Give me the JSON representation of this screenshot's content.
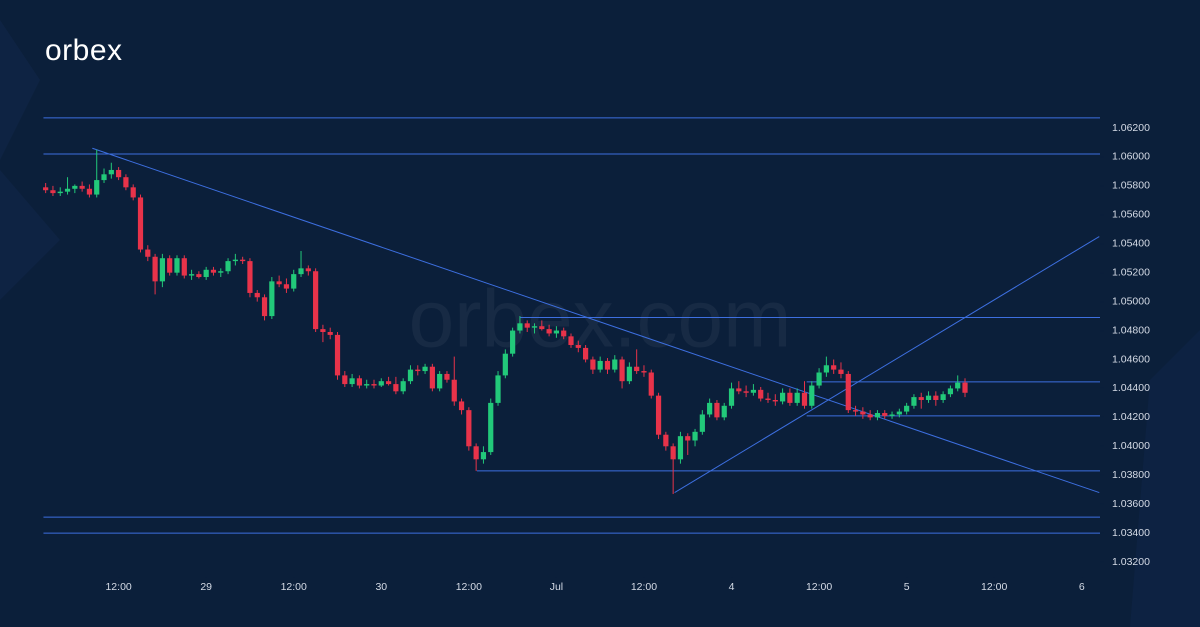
{
  "brand": {
    "logo": "orbex",
    "watermark": "orbex.com"
  },
  "chart_data": {
    "type": "candlestick",
    "up_color": "#22c97a",
    "down_color": "#e8334a",
    "line_color": "#3d6fe0",
    "xlim": [
      -22.5,
      122.5
    ],
    "ylim": [
      1.031,
      1.064
    ],
    "xticks": [
      {
        "value": -12,
        "label": "12:00"
      },
      {
        "value": 0,
        "label": "29"
      },
      {
        "value": 12,
        "label": "12:00"
      },
      {
        "value": 24,
        "label": "30"
      },
      {
        "value": 36,
        "label": "12:00"
      },
      {
        "value": 48,
        "label": "Jul"
      },
      {
        "value": 60,
        "label": "12:00"
      },
      {
        "value": 72,
        "label": "4"
      },
      {
        "value": 84,
        "label": "12:00"
      },
      {
        "value": 96,
        "label": "5"
      },
      {
        "value": 108,
        "label": "12:00"
      },
      {
        "value": 120,
        "label": "6"
      }
    ],
    "yticks": [
      {
        "value": 1.032,
        "label": "1.03200"
      },
      {
        "value": 1.034,
        "label": "1.03400"
      },
      {
        "value": 1.036,
        "label": "1.03600"
      },
      {
        "value": 1.038,
        "label": "1.03800"
      },
      {
        "value": 1.04,
        "label": "1.04000"
      },
      {
        "value": 1.042,
        "label": "1.04200"
      },
      {
        "value": 1.044,
        "label": "1.04400"
      },
      {
        "value": 1.046,
        "label": "1.04600"
      },
      {
        "value": 1.048,
        "label": "1.04800"
      },
      {
        "value": 1.05,
        "label": "1.05000"
      },
      {
        "value": 1.052,
        "label": "1.05200"
      },
      {
        "value": 1.054,
        "label": "1.05400"
      },
      {
        "value": 1.056,
        "label": "1.05600"
      },
      {
        "value": 1.058,
        "label": "1.05800"
      },
      {
        "value": 1.06,
        "label": "1.06000"
      },
      {
        "value": 1.062,
        "label": "1.06200"
      }
    ],
    "x": [
      -22,
      -21,
      -20,
      -19,
      -18,
      -17,
      -16,
      -15,
      -14,
      -13,
      -12,
      -11,
      -10,
      -9,
      -8,
      -7,
      -6,
      -5,
      -4,
      -3,
      -2,
      -1,
      0,
      1,
      2,
      3,
      4,
      5,
      6,
      7,
      8,
      9,
      10,
      11,
      12,
      13,
      14,
      15,
      16,
      17,
      18,
      19,
      20,
      21,
      22,
      23,
      24,
      25,
      26,
      27,
      28,
      29,
      30,
      31,
      32,
      33,
      34,
      35,
      36,
      37,
      38,
      39,
      40,
      41,
      42,
      43,
      44,
      45,
      46,
      47,
      48,
      49,
      50,
      51,
      52,
      53,
      54,
      55,
      56,
      57,
      58,
      59,
      60,
      61,
      62,
      63,
      64,
      65,
      66,
      67,
      68,
      69,
      70,
      71,
      72,
      73,
      74,
      75,
      76,
      77,
      78,
      79,
      80,
      81,
      82,
      83,
      84,
      85,
      86,
      87,
      88,
      89,
      90,
      91,
      92,
      93,
      94,
      95,
      96,
      97,
      98,
      99,
      100,
      101,
      102,
      103,
      104
    ],
    "open": [
      1.0579,
      1.0577,
      1.0575,
      1.0576,
      1.0578,
      1.058,
      1.0578,
      1.0574,
      1.0584,
      1.0588,
      1.0591,
      1.0586,
      1.0579,
      1.0572,
      1.0536,
      1.0531,
      1.0514,
      1.053,
      1.052,
      1.053,
      1.0518,
      1.0519,
      1.0517,
      1.0522,
      1.052,
      1.0521,
      1.0528,
      1.0529,
      1.0528,
      1.0506,
      1.0503,
      1.049,
      1.0514,
      1.0512,
      1.0509,
      1.0519,
      1.0523,
      1.0521,
      1.0481,
      1.0479,
      1.0477,
      1.0449,
      1.0443,
      1.0447,
      1.0442,
      1.0443,
      1.0442,
      1.0445,
      1.0443,
      1.0438,
      1.0445,
      1.0453,
      1.0452,
      1.0455,
      1.044,
      1.045,
      1.0446,
      1.0431,
      1.0425,
      1.04,
      1.0391,
      1.0396,
      1.043,
      1.0449,
      1.0464,
      1.048,
      1.0485,
      1.0482,
      1.0483,
      1.0481,
      1.0478,
      1.048,
      1.0476,
      1.047,
      1.0468,
      1.046,
      1.0453,
      1.0459,
      1.0453,
      1.046,
      1.0445,
      1.0455,
      1.0452,
      1.0451,
      1.0435,
      1.0408,
      1.04,
      1.0391,
      1.0407,
      1.0404,
      1.041,
      1.0422,
      1.043,
      1.042,
      1.0428,
      1.044,
      1.0438,
      1.0437,
      1.0439,
      1.0433,
      1.0432,
      1.0431,
      1.0437,
      1.043,
      1.0437,
      1.0428,
      1.0442,
      1.0451,
      1.0456,
      1.0453,
      1.045,
      1.0425,
      1.0424,
      1.0422,
      1.042,
      1.0423,
      1.0421,
      1.0422,
      1.0424,
      1.0428,
      1.0434,
      1.0432,
      1.0435,
      1.0432,
      1.0436,
      1.044,
      1.0444
    ],
    "high": [
      1.0582,
      1.058,
      1.0579,
      1.0586,
      1.0581,
      1.0583,
      1.0581,
      1.0605,
      1.0592,
      1.0596,
      1.0593,
      1.0588,
      1.0581,
      1.0574,
      1.0539,
      1.0533,
      1.0533,
      1.0532,
      1.0532,
      1.0532,
      1.0522,
      1.0521,
      1.0524,
      1.0524,
      1.0523,
      1.053,
      1.0533,
      1.0531,
      1.053,
      1.0508,
      1.0505,
      1.0517,
      1.0518,
      1.0516,
      1.0522,
      1.0535,
      1.0525,
      1.0523,
      1.0484,
      1.0482,
      1.0479,
      1.0452,
      1.045,
      1.0449,
      1.0446,
      1.0446,
      1.0447,
      1.0448,
      1.0448,
      1.0447,
      1.0456,
      1.0456,
      1.0457,
      1.0457,
      1.0452,
      1.0452,
      1.0462,
      1.0433,
      1.0427,
      1.0402,
      1.04,
      1.0433,
      1.0452,
      1.0467,
      1.0482,
      1.049,
      1.0487,
      1.0485,
      1.0487,
      1.0484,
      1.0483,
      1.0482,
      1.0478,
      1.0473,
      1.047,
      1.0462,
      1.0462,
      1.0461,
      1.0463,
      1.0462,
      1.0458,
      1.0467,
      1.0456,
      1.0453,
      1.0437,
      1.041,
      1.0402,
      1.041,
      1.0409,
      1.0412,
      1.0425,
      1.0433,
      1.0432,
      1.043,
      1.0444,
      1.0445,
      1.0442,
      1.0443,
      1.0441,
      1.0437,
      1.0436,
      1.044,
      1.044,
      1.044,
      1.0445,
      1.0445,
      1.0454,
      1.0462,
      1.046,
      1.0458,
      1.0452,
      1.0428,
      1.0427,
      1.0425,
      1.0425,
      1.0425,
      1.0424,
      1.0426,
      1.043,
      1.0436,
      1.0437,
      1.0438,
      1.0438,
      1.0438,
      1.0442,
      1.0449,
      1.0447
    ],
    "low": [
      1.0575,
      1.0573,
      1.0573,
      1.0574,
      1.0575,
      1.0576,
      1.0572,
      1.0572,
      1.0582,
      1.0585,
      1.0584,
      1.0577,
      1.057,
      1.0534,
      1.0528,
      1.0505,
      1.051,
      1.0518,
      1.0518,
      1.0516,
      1.0515,
      1.0516,
      1.0515,
      1.0518,
      1.0517,
      1.0519,
      1.0525,
      1.0526,
      1.0503,
      1.05,
      1.0487,
      1.0488,
      1.051,
      1.0506,
      1.0507,
      1.0517,
      1.0518,
      1.0479,
      1.0472,
      1.0474,
      1.0446,
      1.0441,
      1.0441,
      1.044,
      1.044,
      1.044,
      1.0441,
      1.0442,
      1.0436,
      1.0436,
      1.0443,
      1.0449,
      1.045,
      1.0438,
      1.0438,
      1.0444,
      1.0428,
      1.0422,
      1.0397,
      1.0383,
      1.0388,
      1.0394,
      1.0428,
      1.0447,
      1.0462,
      1.0478,
      1.0479,
      1.0478,
      1.048,
      1.0476,
      1.0475,
      1.0474,
      1.0468,
      1.0465,
      1.0458,
      1.045,
      1.0451,
      1.045,
      1.0451,
      1.044,
      1.0443,
      1.045,
      1.0448,
      1.0433,
      1.0405,
      1.0397,
      1.0367,
      1.0388,
      1.0394,
      1.04,
      1.0408,
      1.042,
      1.0418,
      1.0418,
      1.0426,
      1.0436,
      1.0434,
      1.0435,
      1.0431,
      1.043,
      1.0428,
      1.0429,
      1.0428,
      1.0428,
      1.0426,
      1.0426,
      1.044,
      1.0448,
      1.045,
      1.0447,
      1.0423,
      1.0421,
      1.0419,
      1.0418,
      1.0418,
      1.0419,
      1.0419,
      1.042,
      1.0422,
      1.0426,
      1.0426,
      1.043,
      1.0428,
      1.043,
      1.0434,
      1.0438,
      1.0434
    ],
    "close": [
      1.0577,
      1.0575,
      1.0576,
      1.0578,
      1.058,
      1.0578,
      1.0574,
      1.0584,
      1.0588,
      1.0591,
      1.0586,
      1.0579,
      1.0572,
      1.0536,
      1.0531,
      1.0514,
      1.053,
      1.052,
      1.053,
      1.0518,
      1.0519,
      1.0517,
      1.0522,
      1.052,
      1.0521,
      1.0528,
      1.0529,
      1.0528,
      1.0506,
      1.0503,
      1.049,
      1.0514,
      1.0512,
      1.0509,
      1.0519,
      1.0523,
      1.0521,
      1.0481,
      1.0479,
      1.0477,
      1.0449,
      1.0443,
      1.0447,
      1.0442,
      1.0443,
      1.0442,
      1.0445,
      1.0443,
      1.0438,
      1.0445,
      1.0453,
      1.0452,
      1.0455,
      1.044,
      1.045,
      1.0446,
      1.0431,
      1.0425,
      1.04,
      1.0391,
      1.0396,
      1.043,
      1.0449,
      1.0464,
      1.048,
      1.0485,
      1.0482,
      1.0483,
      1.0481,
      1.0478,
      1.048,
      1.0476,
      1.047,
      1.0468,
      1.046,
      1.0453,
      1.0459,
      1.0453,
      1.046,
      1.0445,
      1.0455,
      1.0452,
      1.0451,
      1.0435,
      1.0408,
      1.04,
      1.0391,
      1.0407,
      1.0404,
      1.041,
      1.0422,
      1.043,
      1.042,
      1.0428,
      1.044,
      1.0438,
      1.0437,
      1.0439,
      1.0433,
      1.0432,
      1.0431,
      1.0437,
      1.043,
      1.0437,
      1.0428,
      1.0442,
      1.0451,
      1.0456,
      1.0453,
      1.045,
      1.0425,
      1.0424,
      1.0422,
      1.042,
      1.0423,
      1.0421,
      1.0422,
      1.0424,
      1.0428,
      1.0434,
      1.0432,
      1.0435,
      1.0432,
      1.0436,
      1.044,
      1.0444,
      1.0437
    ],
    "horizontal_lines": [
      {
        "y": 1.0627,
        "x_start": -22.3
      },
      {
        "y": 1.0602,
        "x_start": -22.3
      },
      {
        "y": 1.0489,
        "x_start": 43
      },
      {
        "y": 1.04445,
        "x_start": 82.3
      },
      {
        "y": 1.0421,
        "x_start": 82.3
      },
      {
        "y": 1.0383,
        "x_start": 37.1
      },
      {
        "y": 1.0351,
        "x_start": -22.3
      },
      {
        "y": 1.034,
        "x_start": -22.3
      }
    ],
    "trend_lines": [
      {
        "x": [
          -15.6,
          122.4
        ],
        "y": [
          1.0606,
          1.0368
        ]
      },
      {
        "x": [
          64.2,
          122.4
        ],
        "y": [
          1.0368,
          1.0545
        ]
      }
    ]
  }
}
